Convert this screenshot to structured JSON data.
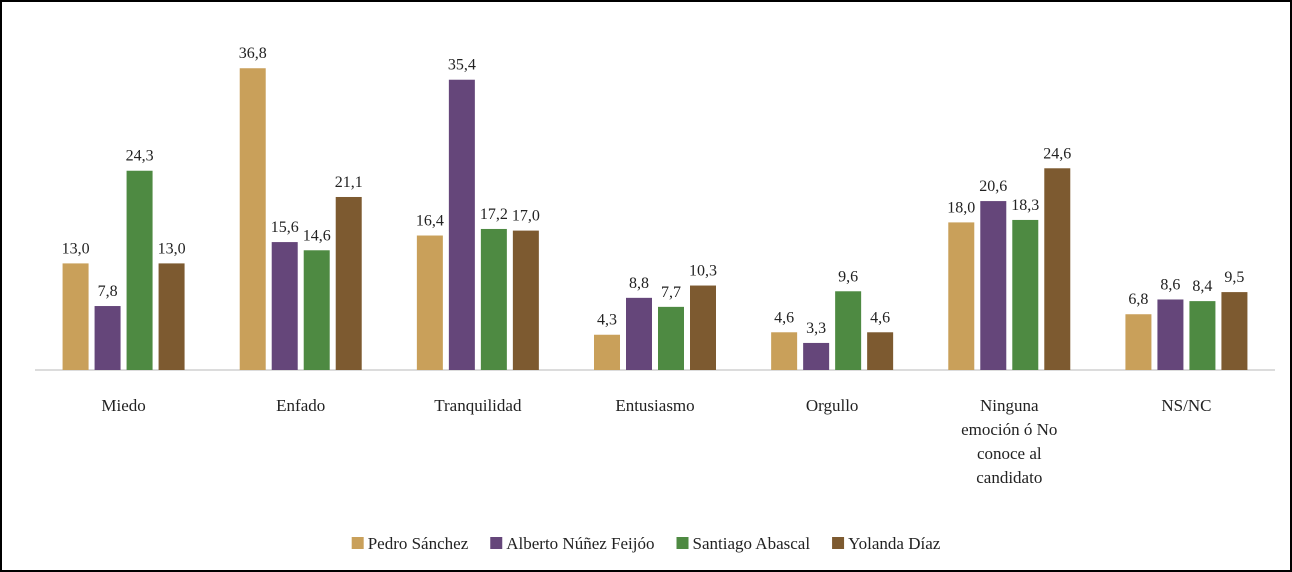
{
  "chart_data": {
    "type": "bar",
    "categories": [
      "Miedo",
      "Enfado",
      "Tranquilidad",
      "Entusiasmo",
      "Orgullo",
      "Ninguna emoción ó No conoce al candidato",
      "NS/NC"
    ],
    "series": [
      {
        "name": "Pedro Sánchez",
        "color": "#c9a05a",
        "values": [
          13.0,
          36.8,
          16.4,
          4.3,
          4.6,
          18.0,
          6.8
        ],
        "value_labels": [
          "13,0",
          "36,8",
          "16,4",
          "4,3",
          "4,6",
          "18,0",
          "6,8"
        ]
      },
      {
        "name": "Alberto Núñez Feijóo",
        "color": "#65467a",
        "values": [
          7.8,
          15.6,
          35.4,
          8.8,
          3.3,
          20.6,
          8.6
        ],
        "value_labels": [
          "7,8",
          "15,6",
          "35,4",
          "8,8",
          "3,3",
          "20,6",
          "8,6"
        ]
      },
      {
        "name": "Santiago Abascal",
        "color": "#4e8a42",
        "values": [
          24.3,
          14.6,
          17.2,
          7.7,
          9.6,
          18.3,
          8.4
        ],
        "value_labels": [
          "24,3",
          "14,6",
          "17,2",
          "7,7",
          "9,6",
          "18,3",
          "8,4"
        ]
      },
      {
        "name": "Yolanda Díaz",
        "color": "#7d5a30",
        "values": [
          13.0,
          21.1,
          17.0,
          10.3,
          4.6,
          24.6,
          9.5
        ],
        "value_labels": [
          "13,0",
          "21,1",
          "17,0",
          "10,3",
          "4,6",
          "24,6",
          "9,5"
        ]
      }
    ],
    "ylim": [
      0,
      40
    ]
  }
}
